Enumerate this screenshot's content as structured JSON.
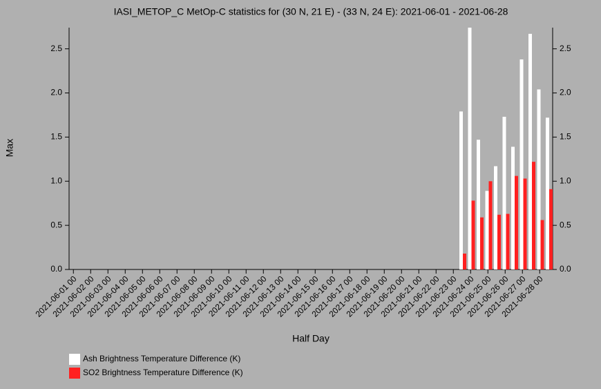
{
  "chart_data": {
    "type": "bar",
    "title": "IASI_METOP_C MetOp-C statistics for (30 N, 21 E) - (33 N, 24 E): 2021-06-01 - 2021-06-28",
    "xlabel": "Half Day",
    "ylabel": "Max",
    "categories": [
      "2021-06-01 00",
      null,
      "2021-06-02 00",
      null,
      "2021-06-03 00",
      null,
      "2021-06-04 00",
      null,
      "2021-06-05 00",
      null,
      "2021-06-06 00",
      null,
      "2021-06-07 00",
      null,
      "2021-06-08 00",
      null,
      "2021-06-09 00",
      null,
      "2021-06-10 00",
      null,
      "2021-06-11 00",
      null,
      "2021-06-12 00",
      null,
      "2021-06-13 00",
      null,
      "2021-06-14 00",
      null,
      "2021-06-15 00",
      null,
      "2021-06-16 00",
      null,
      "2021-06-17 00",
      null,
      "2021-06-18 00",
      null,
      "2021-06-19 00",
      null,
      "2021-06-20 00",
      null,
      "2021-06-21 00",
      null,
      "2021-06-22 00",
      null,
      "2021-06-23 00",
      null,
      "2021-06-24 00",
      null,
      "2021-06-25 00",
      null,
      "2021-06-26 00",
      null,
      "2021-06-27 00",
      null,
      "2021-06-28 00",
      null
    ],
    "series": [
      {
        "name": "Ash Brightness Temperature Difference (K)",
        "color": "#ffffff",
        "values": [
          null,
          null,
          null,
          null,
          null,
          null,
          null,
          null,
          null,
          null,
          null,
          null,
          null,
          null,
          null,
          null,
          null,
          null,
          null,
          null,
          null,
          null,
          null,
          null,
          null,
          null,
          null,
          null,
          null,
          null,
          null,
          null,
          null,
          null,
          null,
          null,
          null,
          null,
          null,
          null,
          null,
          null,
          null,
          null,
          null,
          1.79,
          2.74,
          1.47,
          0.89,
          1.17,
          1.73,
          1.39,
          2.38,
          2.67,
          2.04,
          1.72
        ]
      },
      {
        "name": "SO2 Brightness Temperature Difference (K)",
        "color": "#ff2020",
        "values": [
          null,
          null,
          null,
          null,
          null,
          null,
          null,
          null,
          null,
          null,
          null,
          null,
          null,
          null,
          null,
          null,
          null,
          null,
          null,
          null,
          null,
          null,
          null,
          null,
          null,
          null,
          null,
          null,
          null,
          null,
          null,
          null,
          null,
          null,
          null,
          null,
          null,
          null,
          null,
          null,
          null,
          null,
          null,
          null,
          null,
          0.18,
          0.78,
          0.59,
          1.0,
          0.62,
          0.63,
          1.06,
          1.03,
          1.22,
          0.56,
          0.91
        ]
      }
    ],
    "ylim": [
      0,
      2.74
    ],
    "yticks": [
      {
        "value": 0,
        "label": "0.0"
      },
      {
        "value": 0.5,
        "label": "0.5"
      },
      {
        "value": 1,
        "label": "1.0"
      },
      {
        "value": 1.5,
        "label": "1.5"
      },
      {
        "value": 2,
        "label": "2.0"
      },
      {
        "value": 2.5,
        "label": "2.5"
      }
    ]
  }
}
